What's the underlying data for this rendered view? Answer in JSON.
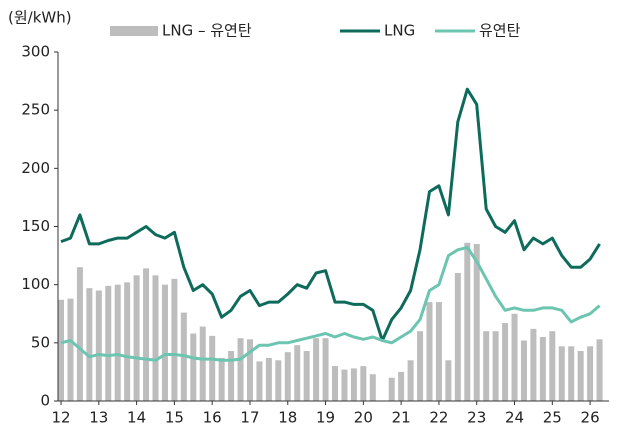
{
  "chart_data": {
    "type": "bar-line",
    "y_label": "(원/kWh)",
    "x": [
      2012,
      2012.25,
      2012.5,
      2012.75,
      2013,
      2013.25,
      2013.5,
      2013.75,
      2014,
      2014.25,
      2014.5,
      2014.75,
      2015,
      2015.25,
      2015.5,
      2015.75,
      2016,
      2016.25,
      2016.5,
      2016.75,
      2017,
      2017.25,
      2017.5,
      2017.75,
      2018,
      2018.25,
      2018.5,
      2018.75,
      2019,
      2019.25,
      2019.5,
      2019.75,
      2020,
      2020.25,
      2020.5,
      2020.75,
      2021,
      2021.25,
      2021.5,
      2021.75,
      2022,
      2022.25,
      2022.5,
      2022.75,
      2023,
      2023.25,
      2023.5,
      2023.75,
      2024,
      2024.25,
      2024.5,
      2024.75,
      2025,
      2025.25,
      2025.5,
      2025.75,
      2026,
      2026.25
    ],
    "series": [
      {
        "name": "LNG – 유연탄",
        "kind": "bar",
        "color": "#bdbdbd",
        "values": [
          87,
          88,
          115,
          97,
          95,
          99,
          100,
          102,
          108,
          114,
          108,
          100,
          105,
          76,
          58,
          64,
          56,
          37,
          43,
          54,
          53,
          34,
          37,
          35,
          42,
          48,
          43,
          54,
          54,
          30,
          27,
          28,
          30,
          23,
          0,
          20,
          25,
          35,
          60,
          85,
          85,
          35,
          110,
          136,
          135,
          60,
          60,
          67,
          75,
          52,
          62,
          55,
          60,
          47,
          47,
          43,
          47,
          53
        ]
      },
      {
        "name": "LNG",
        "kind": "line",
        "color": "#0e6b5c",
        "values": [
          137,
          140,
          160,
          135,
          135,
          138,
          140,
          140,
          145,
          150,
          143,
          140,
          145,
          115,
          95,
          100,
          92,
          72,
          78,
          90,
          95,
          82,
          85,
          85,
          92,
          100,
          97,
          110,
          112,
          85,
          85,
          83,
          83,
          78,
          52,
          70,
          80,
          95,
          130,
          180,
          185,
          160,
          240,
          268,
          255,
          165,
          150,
          145,
          155,
          130,
          140,
          135,
          140,
          125,
          115,
          115,
          122,
          135
        ]
      },
      {
        "name": "유연탄",
        "kind": "line",
        "color": "#6cc5b0",
        "values": [
          50,
          52,
          45,
          38,
          40,
          39,
          40,
          38,
          37,
          36,
          35,
          40,
          40,
          39,
          37,
          36,
          36,
          35,
          35,
          36,
          42,
          48,
          48,
          50,
          50,
          52,
          54,
          56,
          58,
          55,
          58,
          55,
          53,
          55,
          52,
          50,
          55,
          60,
          70,
          95,
          100,
          125,
          130,
          132,
          120,
          105,
          90,
          78,
          80,
          78,
          78,
          80,
          80,
          78,
          68,
          72,
          75,
          82
        ]
      }
    ],
    "xlim": [
      2011.92,
      2026.5
    ],
    "xticks": [
      {
        "value": 2012,
        "label": "12"
      },
      {
        "value": 2013,
        "label": "13"
      },
      {
        "value": 2014,
        "label": "14"
      },
      {
        "value": 2015,
        "label": "15"
      },
      {
        "value": 2016,
        "label": "16"
      },
      {
        "value": 2017,
        "label": "17"
      },
      {
        "value": 2018,
        "label": "18"
      },
      {
        "value": 2019,
        "label": "19"
      },
      {
        "value": 2020,
        "label": "20"
      },
      {
        "value": 2021,
        "label": "21"
      },
      {
        "value": 2022,
        "label": "22"
      },
      {
        "value": 2023,
        "label": "23"
      },
      {
        "value": 2024,
        "label": "24"
      },
      {
        "value": 2025,
        "label": "25"
      },
      {
        "value": 2026,
        "label": "26"
      }
    ],
    "ylim": [
      0,
      300
    ],
    "yticks": [
      0,
      50,
      100,
      150,
      200,
      250,
      300
    ]
  }
}
